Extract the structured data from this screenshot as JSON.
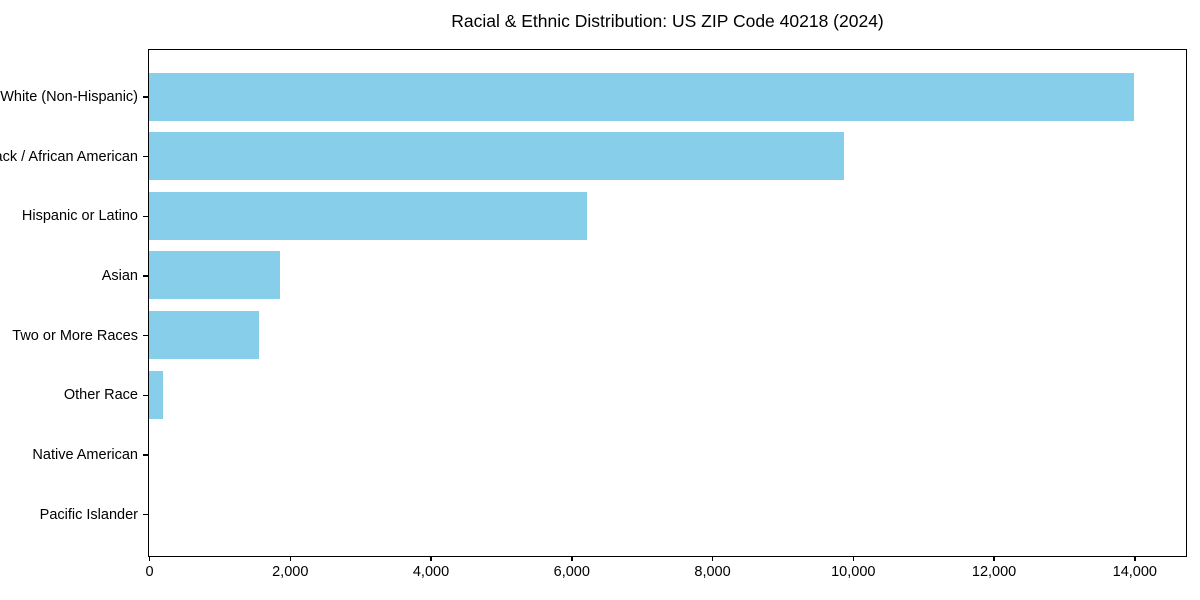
{
  "page": {
    "background_color": "#ffffff",
    "text_color": "#000000"
  },
  "chart_data": {
    "type": "bar",
    "orientation": "horizontal",
    "title": "Racial & Ethnic Distribution: US ZIP Code 40218 (2024)",
    "categories": [
      "White (Non-Hispanic)",
      "Black / African American",
      "Hispanic or Latino",
      "Asian",
      "Two or More Races",
      "Other Race",
      "Native American",
      "Pacific Islander"
    ],
    "values": [
      14000,
      9870,
      6230,
      1860,
      1570,
      200,
      0,
      0
    ],
    "xlabel": "",
    "ylabel": "",
    "xlim": [
      0,
      14720
    ],
    "xticks": [
      0,
      2000,
      4000,
      6000,
      8000,
      10000,
      12000,
      14000
    ],
    "xtick_labels": [
      "0",
      "2,000",
      "4,000",
      "6,000",
      "8,000",
      "10,000",
      "12,000",
      "14,000"
    ],
    "bar_color": "#87CEEB",
    "grid": false,
    "legend": null
  }
}
